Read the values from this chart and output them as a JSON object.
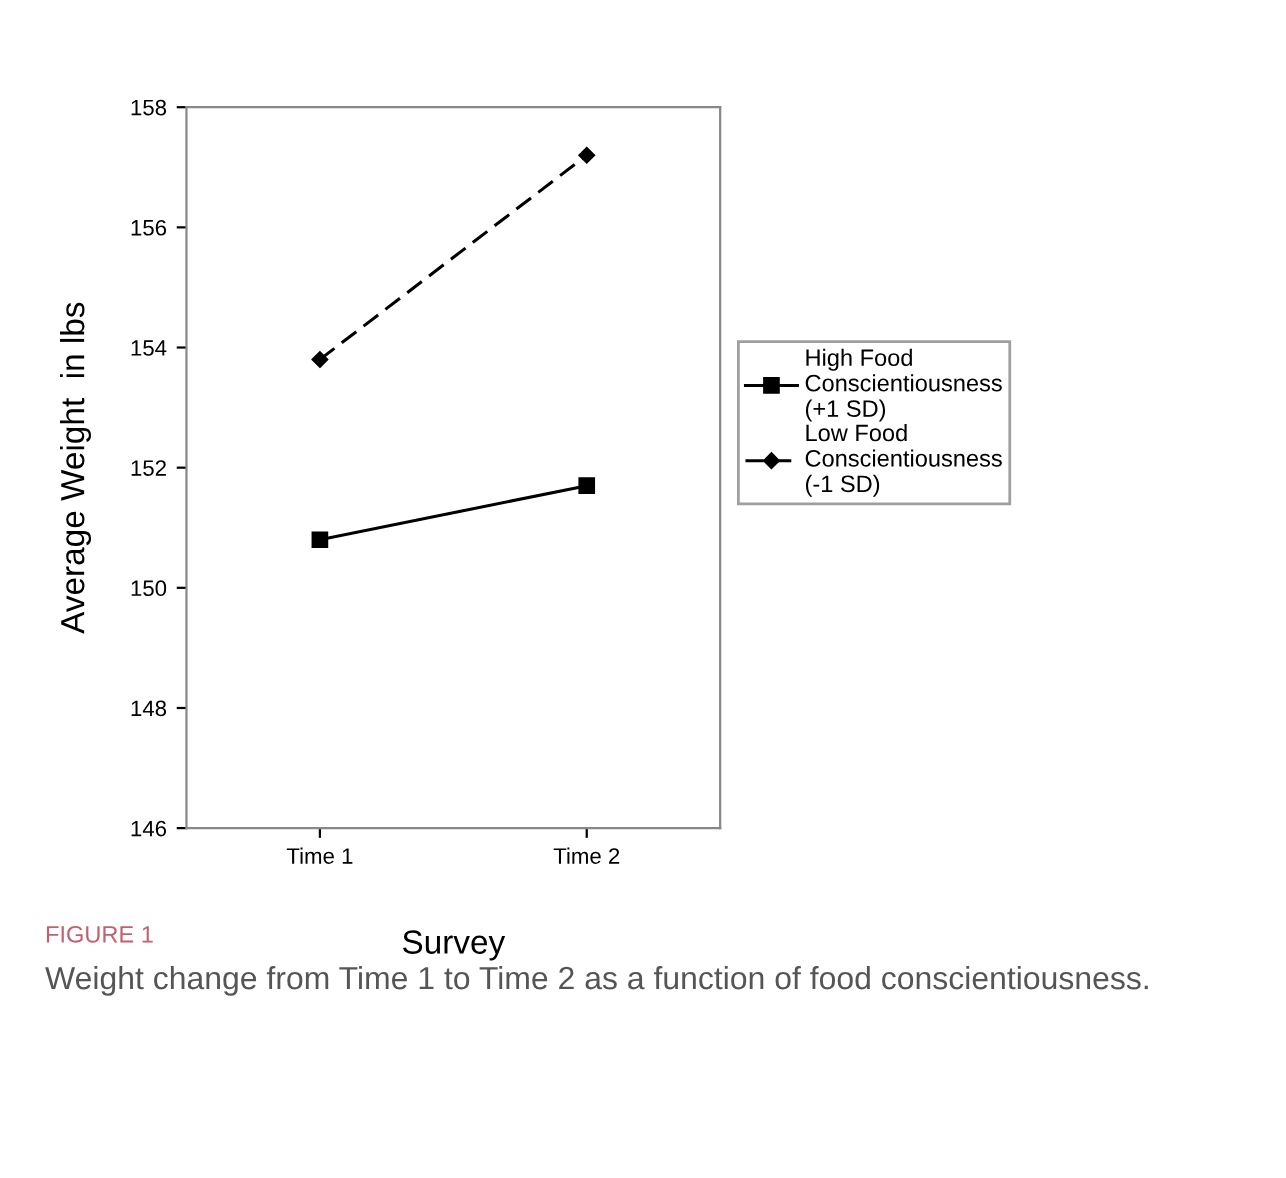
{
  "chart_data": {
    "type": "line",
    "xlabel": "Survey",
    "ylabel": "Average Weight  in lbs",
    "categories": [
      "Time 1",
      "Time 2"
    ],
    "series": [
      {
        "name": "High Food\nConscientiousness\n(+1 SD)",
        "color": "#000000",
        "values": [
          150.8,
          151.7
        ],
        "marker": "square",
        "line_style": "solid"
      },
      {
        "name": "Low Food\nConscientiousness\n(-1 SD)",
        "color": "#000000",
        "values": [
          153.8,
          157.2
        ],
        "marker": "diamond",
        "line_style": "dashed"
      }
    ],
    "ylim": [
      146,
      158
    ],
    "yticks": [
      146,
      148,
      150,
      152,
      154,
      156,
      158
    ],
    "grid": false,
    "legend": "right",
    "annotations": [
      "FIGURE 1",
      "Weight change from Time 1 to Time 2 as a function of food conscientiousness."
    ]
  }
}
